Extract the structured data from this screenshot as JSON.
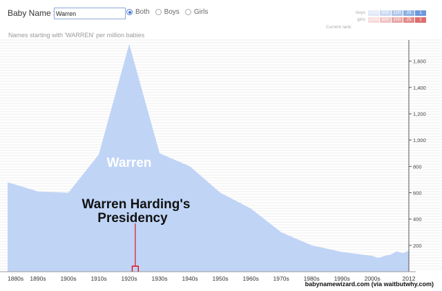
{
  "header": {
    "baby_name_label": "Baby Name >",
    "search_value": "Warren",
    "radio_options": [
      {
        "label": "Both",
        "selected": true
      },
      {
        "label": "Boys",
        "selected": false
      },
      {
        "label": "Girls",
        "selected": false
      }
    ]
  },
  "rank_legend": {
    "boys_label": "boys",
    "girls_label": "girls",
    "ranks": [
      "1000",
      "500",
      "100",
      "25",
      "1"
    ],
    "current_rank_label": "Current rank:",
    "boys_colors": [
      "#dfe8f7",
      "#c9d8f1",
      "#b0c6ea",
      "#8eb0e3",
      "#6f98dc"
    ],
    "girls_colors": [
      "#f6d9d9",
      "#f0c2c2",
      "#e9a6a6",
      "#e48a8a",
      "#dd6e6e"
    ]
  },
  "subtitle": "Names starting with 'WARREN' per million babies",
  "chart_data": {
    "type": "area",
    "series": [
      {
        "name": "Warren",
        "color": "#c0d4f6"
      }
    ],
    "x": [
      1880,
      1890,
      1900,
      1910,
      1920,
      1930,
      1940,
      1950,
      1960,
      1970,
      1980,
      1990,
      2000,
      2002,
      2004,
      2006,
      2008,
      2010,
      2012
    ],
    "values": [
      680,
      610,
      600,
      890,
      1730,
      900,
      800,
      600,
      480,
      300,
      200,
      150,
      120,
      105,
      120,
      130,
      155,
      140,
      160
    ],
    "x_tick_labels": [
      "1880s",
      "1890s",
      "1900s",
      "1910s",
      "1920s",
      "1930s",
      "1940s",
      "1950s",
      "1960s",
      "1970s",
      "1980s",
      "1990s",
      "2000s",
      "2012"
    ],
    "y_ticks": [
      200,
      400,
      600,
      800,
      1000,
      1200,
      1400,
      1600
    ],
    "y_tick_labels": [
      "200",
      "400",
      "600",
      "800",
      "1,000",
      "1,200",
      "1,400",
      "1,600"
    ],
    "ylim": [
      0,
      1750
    ],
    "xlim": [
      1880,
      2012
    ],
    "y_axis_side": "right",
    "grid": true
  },
  "annotations": {
    "series_label": "Warren",
    "event_label_line1": "Warren Harding's",
    "event_label_line2": "Presidency",
    "event_start": 1921,
    "event_end": 1923,
    "event_color": "#e0121b"
  },
  "footer": "babynamewizard.com (via waitbutwhy.com)"
}
